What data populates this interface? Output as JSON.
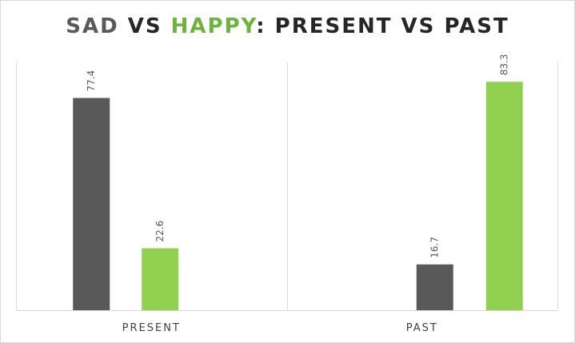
{
  "chart_data": {
    "type": "bar",
    "title": {
      "part1": "SAD",
      "part2": " VS ",
      "part3": "HAPPY",
      "part4": ": PRESENT VS PAST"
    },
    "categories": [
      "PRESENT",
      "PAST"
    ],
    "series": [
      {
        "name": "SAD",
        "values": [
          77.4,
          16.7
        ],
        "color": "#595959"
      },
      {
        "name": "HAPPY",
        "values": [
          22.6,
          83.3
        ],
        "color": "#92d050"
      }
    ],
    "ylim": [
      0,
      90
    ],
    "grid": false,
    "legend": "none",
    "xlabel": "",
    "ylabel": ""
  }
}
